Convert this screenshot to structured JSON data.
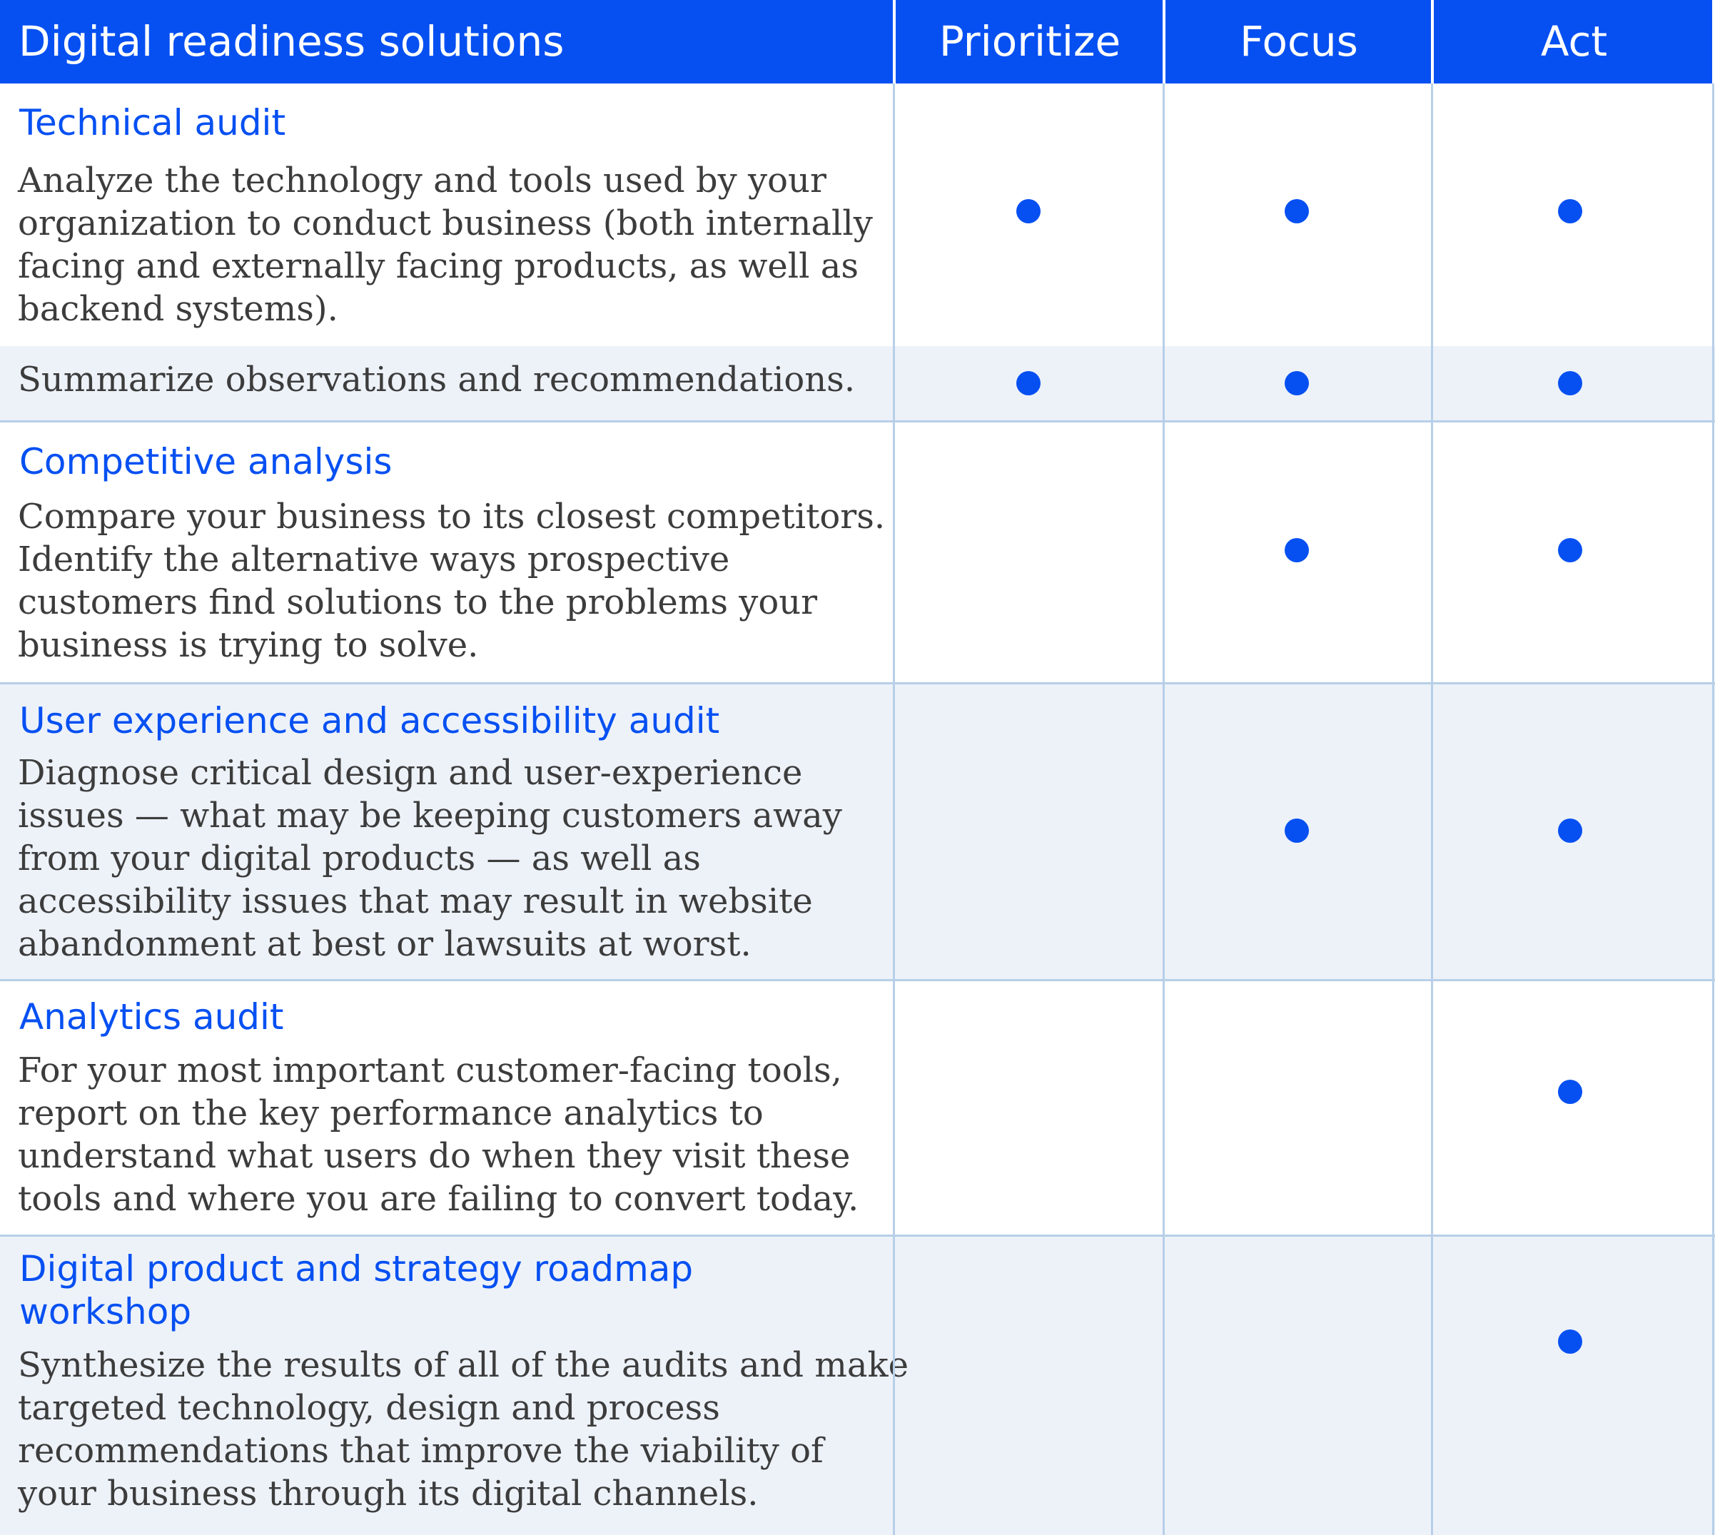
{
  "header": {
    "title": "Digital readiness solutions",
    "columns": [
      "Prioritize",
      "Focus",
      "Act"
    ]
  },
  "rows": [
    {
      "title": "Technical audit",
      "description_lines": [
        "Analyze the technology and tools used by your",
        "organization to conduct business (both internally",
        "facing and externally facing products, as well as",
        "backend systems)."
      ],
      "prioritize": true,
      "focus": true,
      "act": true
    },
    {
      "title": "",
      "description_lines": [
        "Summarize observations and recommendations."
      ],
      "prioritize": true,
      "focus": true,
      "act": true
    },
    {
      "title": "Competitive analysis",
      "description_lines": [
        "Compare your business to its closest competitors.",
        "Identify the alternative ways prospective",
        "customers find solutions to the problems your",
        "business is trying to solve."
      ],
      "prioritize": false,
      "focus": true,
      "act": true
    },
    {
      "title": "User experience and accessibility audit",
      "description_lines": [
        "Diagnose critical design and user-experience",
        "issues — what may be keeping customers away",
        "from your digital products — as well as",
        "accessibility issues that may result in website",
        "abandonment at best or lawsuits at worst."
      ],
      "prioritize": false,
      "focus": true,
      "act": true
    },
    {
      "title": "Analytics audit",
      "description_lines": [
        "For your most important customer-facing tools,",
        "report on the key performance analytics to",
        "understand what users do when they visit these",
        "tools and where you are failing to convert today."
      ],
      "prioritize": false,
      "focus": false,
      "act": true
    },
    {
      "title_lines": [
        "Digital product and strategy roadmap",
        "workshop"
      ],
      "description_lines": [
        "Synthesize the results of all of the audits and make",
        "targeted technology, design and process",
        "recommendations that improve the viability of",
        "your business through its digital channels."
      ],
      "prioritize": false,
      "focus": false,
      "act": true
    }
  ],
  "colors": {
    "accent": "#0650f2",
    "alt_row_background": "#edf2f9",
    "grid_lines": "#b7cfe8",
    "body_text": "#3c3c3c"
  }
}
